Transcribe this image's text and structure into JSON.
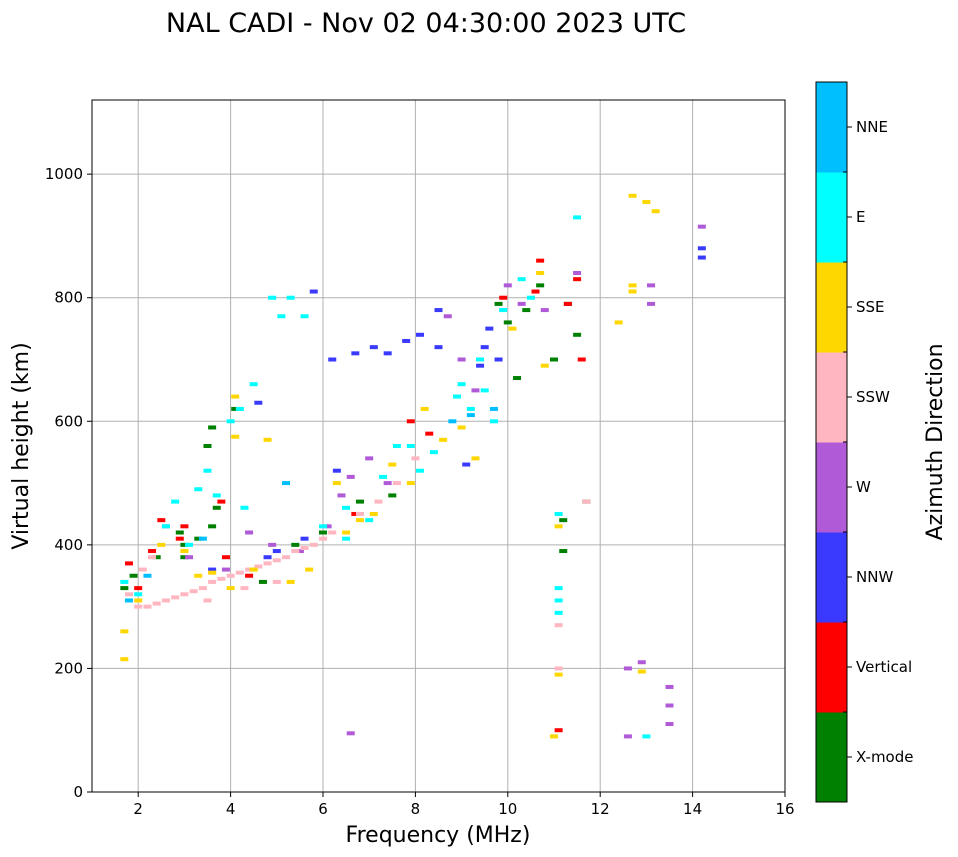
{
  "chart_data": {
    "type": "scatter",
    "title": "NAL CADI - Nov 02 04:30:00 2023 UTC",
    "xlabel": "Frequency (MHz)",
    "ylabel": "Virtual height (km)",
    "xlim": [
      1,
      16
    ],
    "ylim": [
      0,
      1120
    ],
    "xticks": [
      "2",
      "4",
      "6",
      "8",
      "10",
      "12",
      "14",
      "16"
    ],
    "yticks": [
      "0",
      "200",
      "400",
      "600",
      "800",
      "1000"
    ],
    "grid": true,
    "colorbar": {
      "label": "Azimuth Direction",
      "categories": [
        {
          "name": "X-mode",
          "color": "#008000"
        },
        {
          "name": "Vertical",
          "color": "#ff0000"
        },
        {
          "name": "NNW",
          "color": "#3a3aff"
        },
        {
          "name": "W",
          "color": "#b05ad8"
        },
        {
          "name": "SSW",
          "color": "#ffb6c1"
        },
        {
          "name": "SSE",
          "color": "#ffd700"
        },
        {
          "name": "E",
          "color": "#00ffff"
        },
        {
          "name": "NNE",
          "color": "#00bfff"
        }
      ]
    },
    "series": [
      {
        "name": "X-mode",
        "points": [
          [
            1.7,
            330
          ],
          [
            1.9,
            350
          ],
          [
            2.4,
            380
          ],
          [
            2.9,
            420
          ],
          [
            3.0,
            400
          ],
          [
            3.3,
            410
          ],
          [
            3.6,
            430
          ],
          [
            3.5,
            560
          ],
          [
            3.6,
            590
          ],
          [
            3.7,
            460
          ],
          [
            4.1,
            620
          ],
          [
            5.4,
            400
          ],
          [
            6.0,
            420
          ],
          [
            6.8,
            470
          ],
          [
            7.5,
            480
          ],
          [
            9.8,
            790
          ],
          [
            10.0,
            760
          ],
          [
            10.2,
            670
          ],
          [
            10.4,
            780
          ],
          [
            10.7,
            820
          ],
          [
            11.0,
            700
          ],
          [
            11.2,
            390
          ],
          [
            11.2,
            440
          ],
          [
            11.3,
            790
          ],
          [
            11.5,
            740
          ],
          [
            11.7,
            470
          ],
          [
            3.0,
            380
          ],
          [
            4.7,
            340
          ]
        ]
      },
      {
        "name": "Vertical",
        "points": [
          [
            1.8,
            370
          ],
          [
            2.0,
            330
          ],
          [
            2.3,
            390
          ],
          [
            2.5,
            440
          ],
          [
            2.9,
            410
          ],
          [
            3.0,
            430
          ],
          [
            3.9,
            380
          ],
          [
            4.4,
            350
          ],
          [
            7.9,
            600
          ],
          [
            8.3,
            580
          ],
          [
            9.9,
            800
          ],
          [
            10.6,
            810
          ],
          [
            10.7,
            860
          ],
          [
            11.3,
            790
          ],
          [
            11.5,
            830
          ],
          [
            11.6,
            700
          ],
          [
            11.1,
            100
          ],
          [
            3.8,
            470
          ],
          [
            6.7,
            450
          ]
        ]
      },
      {
        "name": "NNW",
        "points": [
          [
            4.6,
            630
          ],
          [
            5.8,
            810
          ],
          [
            6.2,
            700
          ],
          [
            6.7,
            710
          ],
          [
            7.1,
            720
          ],
          [
            7.4,
            710
          ],
          [
            7.8,
            730
          ],
          [
            8.1,
            740
          ],
          [
            8.5,
            720
          ],
          [
            8.5,
            780
          ],
          [
            9.1,
            530
          ],
          [
            9.4,
            690
          ],
          [
            9.6,
            750
          ],
          [
            9.8,
            700
          ],
          [
            14.2,
            880
          ],
          [
            14.2,
            865
          ],
          [
            5.0,
            390
          ],
          [
            5.6,
            410
          ],
          [
            6.3,
            520
          ],
          [
            3.6,
            360
          ],
          [
            4.8,
            380
          ],
          [
            9.5,
            720
          ]
        ]
      },
      {
        "name": "W",
        "points": [
          [
            2.6,
            430
          ],
          [
            3.1,
            380
          ],
          [
            3.9,
            360
          ],
          [
            4.4,
            420
          ],
          [
            4.9,
            400
          ],
          [
            5.5,
            390
          ],
          [
            6.1,
            430
          ],
          [
            6.4,
            480
          ],
          [
            6.6,
            510
          ],
          [
            7.0,
            540
          ],
          [
            7.4,
            500
          ],
          [
            8.7,
            770
          ],
          [
            9.0,
            700
          ],
          [
            9.3,
            650
          ],
          [
            10.0,
            820
          ],
          [
            10.8,
            780
          ],
          [
            11.5,
            840
          ],
          [
            12.6,
            200
          ],
          [
            12.9,
            210
          ],
          [
            13.1,
            820
          ],
          [
            13.5,
            170
          ],
          [
            13.5,
            140
          ],
          [
            13.5,
            110
          ],
          [
            13.1,
            790
          ],
          [
            14.2,
            915
          ],
          [
            12.6,
            90
          ],
          [
            6.6,
            95
          ],
          [
            10.3,
            790
          ]
        ]
      },
      {
        "name": "SSW",
        "points": [
          [
            1.8,
            320
          ],
          [
            2.0,
            300
          ],
          [
            2.2,
            300
          ],
          [
            2.4,
            305
          ],
          [
            2.6,
            310
          ],
          [
            2.8,
            315
          ],
          [
            3.0,
            320
          ],
          [
            3.2,
            325
          ],
          [
            3.4,
            330
          ],
          [
            3.6,
            340
          ],
          [
            3.8,
            345
          ],
          [
            4.0,
            350
          ],
          [
            4.2,
            355
          ],
          [
            4.4,
            360
          ],
          [
            4.6,
            365
          ],
          [
            4.8,
            370
          ],
          [
            5.0,
            375
          ],
          [
            5.2,
            380
          ],
          [
            5.4,
            390
          ],
          [
            5.6,
            395
          ],
          [
            5.8,
            400
          ],
          [
            6.0,
            410
          ],
          [
            6.2,
            420
          ],
          [
            2.1,
            360
          ],
          [
            2.3,
            380
          ],
          [
            6.8,
            450
          ],
          [
            7.2,
            470
          ],
          [
            7.6,
            500
          ],
          [
            8.0,
            540
          ],
          [
            11.1,
            270
          ],
          [
            11.1,
            200
          ],
          [
            11.7,
            470
          ],
          [
            4.3,
            330
          ],
          [
            5.0,
            340
          ],
          [
            3.5,
            310
          ]
        ]
      },
      {
        "name": "SSE",
        "points": [
          [
            1.7,
            260
          ],
          [
            1.7,
            215
          ],
          [
            2.0,
            310
          ],
          [
            2.5,
            400
          ],
          [
            3.0,
            390
          ],
          [
            3.3,
            350
          ],
          [
            3.6,
            355
          ],
          [
            4.0,
            330
          ],
          [
            4.1,
            640
          ],
          [
            4.1,
            575
          ],
          [
            4.5,
            360
          ],
          [
            4.8,
            570
          ],
          [
            5.3,
            340
          ],
          [
            5.7,
            360
          ],
          [
            6.3,
            500
          ],
          [
            6.5,
            420
          ],
          [
            6.8,
            440
          ],
          [
            7.1,
            450
          ],
          [
            7.5,
            530
          ],
          [
            8.2,
            620
          ],
          [
            8.6,
            570
          ],
          [
            9.0,
            590
          ],
          [
            9.3,
            540
          ],
          [
            10.1,
            750
          ],
          [
            10.7,
            840
          ],
          [
            10.8,
            690
          ],
          [
            11.0,
            90
          ],
          [
            11.1,
            190
          ],
          [
            11.1,
            430
          ],
          [
            12.4,
            760
          ],
          [
            12.7,
            965
          ],
          [
            12.7,
            820
          ],
          [
            12.7,
            810
          ],
          [
            13.0,
            955
          ],
          [
            13.2,
            940
          ],
          [
            12.9,
            195
          ],
          [
            7.9,
            500
          ]
        ]
      },
      {
        "name": "E",
        "points": [
          [
            1.7,
            340
          ],
          [
            2.0,
            320
          ],
          [
            2.6,
            430
          ],
          [
            2.8,
            470
          ],
          [
            3.1,
            400
          ],
          [
            3.3,
            490
          ],
          [
            3.5,
            520
          ],
          [
            3.7,
            480
          ],
          [
            4.0,
            600
          ],
          [
            4.2,
            620
          ],
          [
            4.5,
            660
          ],
          [
            4.3,
            460
          ],
          [
            4.9,
            800
          ],
          [
            5.1,
            770
          ],
          [
            5.3,
            800
          ],
          [
            5.6,
            770
          ],
          [
            6.0,
            430
          ],
          [
            6.5,
            410
          ],
          [
            7.0,
            440
          ],
          [
            7.6,
            560
          ],
          [
            7.9,
            560
          ],
          [
            8.1,
            520
          ],
          [
            8.4,
            550
          ],
          [
            8.9,
            640
          ],
          [
            9.0,
            660
          ],
          [
            9.2,
            620
          ],
          [
            9.4,
            700
          ],
          [
            9.5,
            650
          ],
          [
            9.7,
            600
          ],
          [
            9.9,
            780
          ],
          [
            10.3,
            830
          ],
          [
            10.5,
            800
          ],
          [
            11.1,
            450
          ],
          [
            11.1,
            330
          ],
          [
            11.1,
            310
          ],
          [
            11.1,
            290
          ],
          [
            11.5,
            930
          ],
          [
            13.0,
            90
          ],
          [
            7.3,
            510
          ],
          [
            6.5,
            460
          ]
        ]
      },
      {
        "name": "NNE",
        "points": [
          [
            1.8,
            310
          ],
          [
            2.2,
            350
          ],
          [
            3.4,
            410
          ],
          [
            5.2,
            500
          ],
          [
            8.8,
            600
          ],
          [
            9.2,
            610
          ],
          [
            9.7,
            620
          ]
        ]
      }
    ]
  }
}
